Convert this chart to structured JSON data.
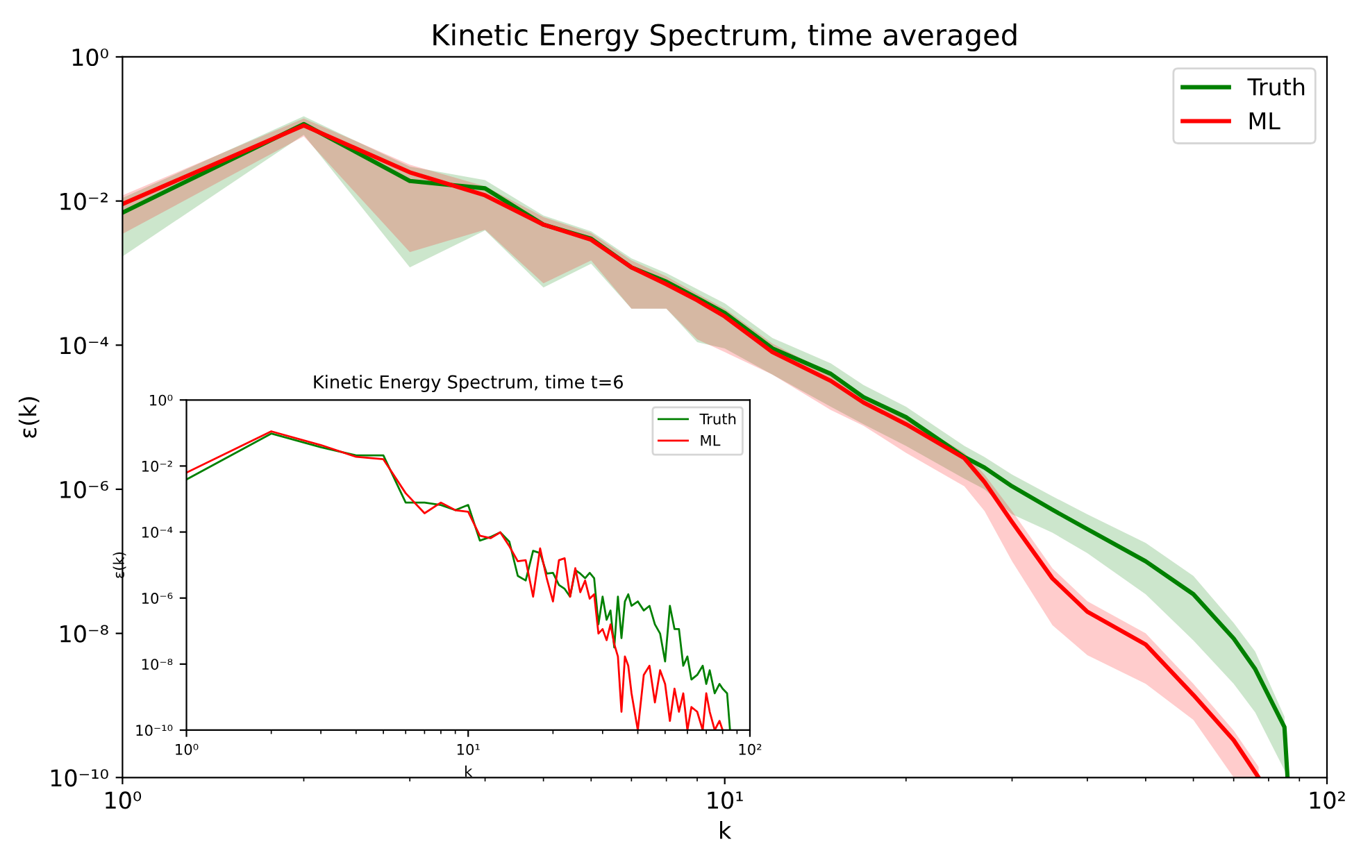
{
  "chart_data": [
    {
      "type": "line",
      "title": "Kinetic Energy Spectrum, time averaged",
      "xlabel": "k",
      "ylabel": "ε(k)",
      "log": "xy",
      "legend": "top right",
      "xlim": [
        1,
        100
      ],
      "ylim": [
        1e-10,
        1
      ],
      "xticks": [
        {
          "value": 1,
          "label": "10⁰"
        },
        {
          "value": 10,
          "label": "10¹"
        },
        {
          "value": 100,
          "label": "10²"
        }
      ],
      "yticks": [
        {
          "value": 1e-10,
          "label": "10⁻¹⁰"
        },
        {
          "value": 1e-08,
          "label": "10⁻⁸"
        },
        {
          "value": 1e-06,
          "label": "10⁻⁶"
        },
        {
          "value": 0.0001,
          "label": "10⁻⁴"
        },
        {
          "value": 0.01,
          "label": "10⁻²"
        },
        {
          "value": 1,
          "label": "10⁰"
        }
      ],
      "series": [
        {
          "name": "Truth",
          "color": "#008000",
          "x": [
            1,
            2,
            3,
            4,
            5,
            6,
            7,
            8,
            9,
            10,
            12,
            15,
            17,
            20,
            25,
            27,
            30,
            35,
            40,
            50,
            60,
            70,
            76,
            85,
            86
          ],
          "values": [
            0.0069,
            0.117,
            0.019,
            0.015,
            0.0047,
            0.003,
            0.0012,
            0.00076,
            0.00045,
            0.00028,
            9e-05,
            4e-05,
            1.9e-05,
            1e-05,
            2.8e-06,
            2e-06,
            1.1e-06,
            5.2e-07,
            2.8e-07,
            1e-07,
            3.5e-08,
            8.5e-09,
            3.2e-09,
            5e-10,
            1e-10
          ],
          "lower": [
            0.0017,
            0.083,
            0.0012,
            0.0039,
            0.00063,
            0.00135,
            0.00032,
            0.00032,
            0.00011,
            9e-05,
            3.9e-05,
            1.4e-05,
            8e-06,
            4e-06,
            1.4e-06,
            1e-06,
            4.5e-07,
            2.5e-07,
            1.3e-07,
            3.5e-08,
            8e-09,
            2e-09,
            8e-10,
            1.26e-10,
            1e-10
          ],
          "upper": [
            0.011,
            0.15,
            0.03,
            0.0195,
            0.0063,
            0.0038,
            0.0016,
            0.001,
            0.0006,
            0.00038,
            0.000126,
            5.6e-05,
            2.8e-05,
            1.4e-05,
            4e-06,
            2.8e-06,
            1.6e-06,
            8e-07,
            4.5e-07,
            1.8e-07,
            6.3e-08,
            1.4e-08,
            5.6e-09,
            7e-10,
            1e-10
          ]
        },
        {
          "name": "ML",
          "color": "#ff0000",
          "x": [
            1,
            2,
            3,
            4,
            5,
            6,
            7,
            8,
            9,
            10,
            12,
            15,
            17,
            20,
            25,
            27,
            30,
            35,
            40,
            50,
            60,
            70,
            77
          ],
          "values": [
            0.0091,
            0.112,
            0.025,
            0.012,
            0.0047,
            0.0029,
            0.0012,
            0.0007,
            0.00042,
            0.00025,
            8e-05,
            3.2e-05,
            1.6e-05,
            8e-06,
            2.7e-06,
            1.26e-06,
            3.5e-07,
            5.8e-08,
            2e-08,
            7e-09,
            1.4e-09,
            3.3e-10,
            1e-10
          ],
          "lower": [
            0.0035,
            0.079,
            0.00195,
            0.004,
            0.00072,
            0.0015,
            0.00032,
            0.00032,
            0.00012,
            8e-05,
            3.9e-05,
            1.26e-05,
            7.6e-06,
            3.2e-06,
            1.1e-06,
            5e-07,
            1e-07,
            1.3e-08,
            5e-09,
            2e-09,
            6.3e-10,
            1e-10,
            1e-10
          ],
          "upper": [
            0.012,
            0.14,
            0.032,
            0.016,
            0.006,
            0.0036,
            0.0015,
            0.0009,
            0.00052,
            0.00032,
            0.000105,
            4e-05,
            2e-05,
            1e-05,
            3.2e-06,
            1.6e-06,
            5e-07,
            8e-08,
            2.8e-08,
            1e-08,
            2e-09,
            4.5e-10,
            1.4e-10
          ]
        }
      ]
    },
    {
      "type": "line",
      "title": "Kinetic Energy Spectrum, time t=6",
      "xlabel": "k",
      "ylabel": "ε(k)",
      "log": "xy",
      "legend": "top right",
      "xlim": [
        1,
        100
      ],
      "ylim": [
        1e-10,
        1
      ],
      "xticks": [
        {
          "value": 1,
          "label": "10⁰"
        },
        {
          "value": 10,
          "label": "10¹"
        },
        {
          "value": 100,
          "label": "10²"
        }
      ],
      "yticks": [
        {
          "value": 1e-10,
          "label": "10⁻¹⁰"
        },
        {
          "value": 1e-08,
          "label": "10⁻⁸"
        },
        {
          "value": 1e-06,
          "label": "10⁻⁶"
        },
        {
          "value": 0.0001,
          "label": "10⁻⁴"
        },
        {
          "value": 0.01,
          "label": "10⁻²"
        },
        {
          "value": 1,
          "label": "10⁰"
        }
      ],
      "series": [
        {
          "name": "Truth",
          "color": "#008000",
          "x": [
            1,
            2,
            3,
            4,
            5,
            6,
            7,
            8,
            9,
            10,
            11,
            12,
            13,
            14,
            15,
            16,
            17,
            18,
            19,
            20,
            21,
            22,
            23,
            24,
            25,
            26,
            27,
            28,
            29,
            30,
            31,
            32,
            33,
            34,
            35,
            36,
            37,
            38,
            40,
            42,
            44,
            46,
            48,
            50,
            52,
            54,
            56,
            58,
            60,
            62,
            65,
            68,
            70,
            72,
            75,
            78,
            80,
            83,
            85
          ],
          "values": [
            0.0039,
            0.096,
            0.037,
            0.021,
            0.021,
            0.00078,
            0.00078,
            0.00066,
            0.00046,
            0.00066,
            5.5e-05,
            7.1e-05,
            9.8e-05,
            5.1e-05,
            4.7e-06,
            3.4e-06,
            2.7e-05,
            2.3e-05,
            5.5e-06,
            5.8e-06,
            2.5e-06,
            1.9e-06,
            1.1e-06,
            7e-06,
            5.5e-06,
            4e-06,
            5.8e-06,
            4e-06,
            1.6e-07,
            1.1e-06,
            2.2e-07,
            4.2e-07,
            3.2e-08,
            1.1e-06,
            6.1e-08,
            7.9e-07,
            1.3e-06,
            5.8e-07,
            7.9e-07,
            4.2e-07,
            5.8e-07,
            1.6e-07,
            8.4e-08,
            1.2e-08,
            5.8e-07,
            1.15e-07,
            1.15e-07,
            8.9e-09,
            1.7e-08,
            3.4e-09,
            4.7e-09,
            8.9e-09,
            2.5e-09,
            6.5e-09,
            1.3e-09,
            2.5e-09,
            1.8e-09,
            1.3e-09,
            1e-10
          ]
        },
        {
          "name": "ML",
          "color": "#ff0000",
          "x": [
            1,
            2,
            3,
            4,
            5,
            6,
            7,
            8,
            9,
            10,
            11,
            12,
            13,
            14,
            15,
            16,
            17,
            18,
            19,
            20,
            21,
            22,
            23,
            24,
            25,
            26,
            27,
            28,
            29,
            30,
            31,
            32,
            33,
            34,
            35,
            36,
            37,
            38,
            40,
            42,
            44,
            46,
            48,
            50,
            52,
            54,
            56,
            58,
            60,
            62,
            65,
            68,
            70,
            72,
            75,
            78,
            80
          ],
          "values": [
            0.0063,
            0.112,
            0.043,
            0.019,
            0.016,
            0.0015,
            0.00037,
            0.00078,
            0.00046,
            0.00041,
            7.7e-05,
            6.5e-05,
            9.8e-05,
            3.7e-05,
            1.3e-05,
            1.4e-05,
            1.1e-06,
            3.2e-05,
            4e-06,
            7.9e-07,
            1.4e-05,
            1.6e-05,
            1.1e-06,
            8e-06,
            1.5e-06,
            3.4e-06,
            9.6e-07,
            1.3e-06,
            8.4e-08,
            1.15e-07,
            5.3e-08,
            1.6e-07,
            4e-08,
            1.7e-08,
            3.6e-10,
            1.7e-08,
            8.9e-09,
            1.3e-09,
            1e-10,
            4.7e-09,
            8.9e-09,
            6.9e-10,
            6.5e-09,
            2.5e-09,
            1.9e-10,
            1.8e-09,
            3.6e-10,
            1.3e-09,
            1e-10,
            5e-10,
            3.6e-10,
            1e-10,
            1.3e-09,
            3.6e-10,
            1e-10,
            1.9e-10,
            1e-10
          ]
        }
      ]
    }
  ]
}
